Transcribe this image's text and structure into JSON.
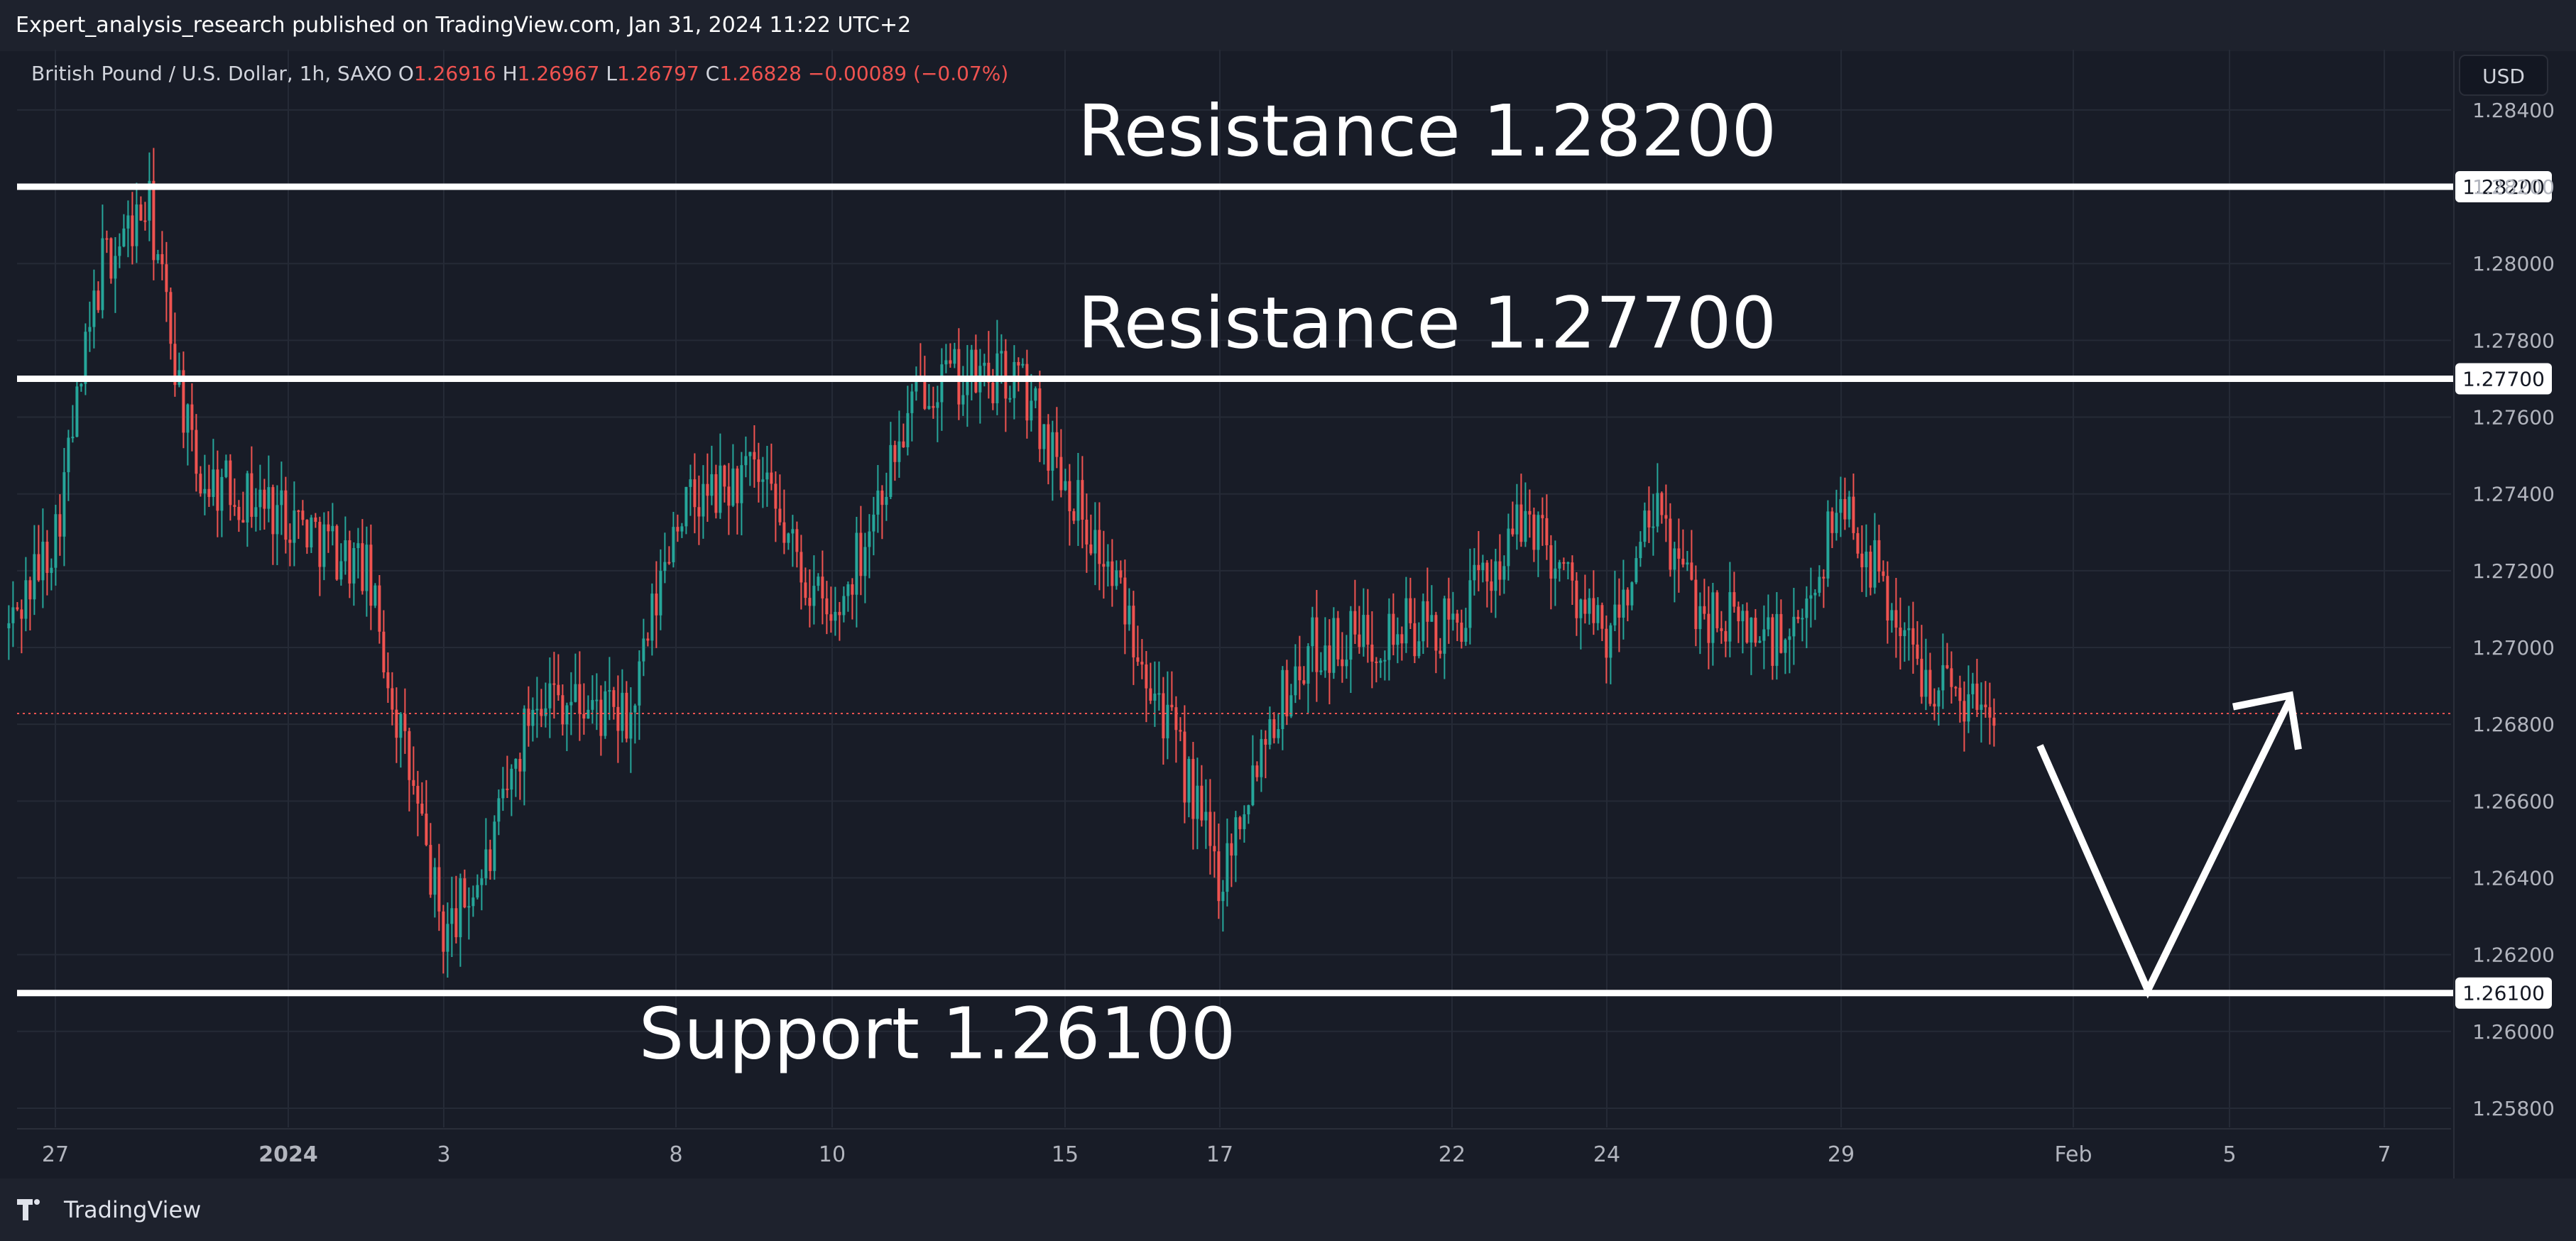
{
  "header": {
    "published_line": "Expert_analysis_research published on TradingView.com, Jan 31, 2024 11:22 UTC+2"
  },
  "legend": {
    "symbol": "British Pound / U.S. Dollar, 1h, SAXO",
    "o_label": "O",
    "o_value": "1.26916",
    "h_label": "H",
    "h_value": "1.26967",
    "l_label": "L",
    "l_value": "1.26797",
    "c_label": "C",
    "c_value": "1.26828",
    "change": "−0.00089 (−0.07%)"
  },
  "currency_button": "USD",
  "footer": {
    "brand": "TradingView"
  },
  "colors": {
    "background": "#181c27",
    "up": "#26a69a",
    "down": "#ef5350",
    "level_line": "#ffffff",
    "current_price_line": "#ef5350"
  },
  "chart_data": {
    "type": "candlestick",
    "timeframe": "1h",
    "ylim": [
      1.2575,
      1.2852
    ],
    "y_ticks": [
      "1.28400",
      "1.28200",
      "1.28000",
      "1.27800",
      "1.27600",
      "1.27400",
      "1.27200",
      "1.27000",
      "1.26800",
      "1.26600",
      "1.26400",
      "1.26200",
      "1.26000",
      "1.25800"
    ],
    "x_tick_labels": [
      "27",
      "2024",
      "3",
      "8",
      "10",
      "15",
      "17",
      "22",
      "24",
      "29",
      "Feb",
      "5",
      "7"
    ],
    "levels": [
      {
        "label": "Resistance 1.28200",
        "value": 1.282,
        "tag": "1.28200"
      },
      {
        "label": "Resistance 1.27700",
        "value": 1.277,
        "tag": "1.27700"
      },
      {
        "label": "Support 1.26100",
        "value": 1.261,
        "tag": "1.26100"
      }
    ],
    "current_price": 1.26828,
    "projection_path": [
      {
        "date": "Jan 31",
        "price": 1.268
      },
      {
        "date": "Feb 3",
        "price": 1.261
      },
      {
        "date": "Feb 6",
        "price": 1.2679
      }
    ],
    "series_path": [
      {
        "date": "Dec 26",
        "price": 1.2705
      },
      {
        "date": "Dec 27",
        "price": 1.273
      },
      {
        "date": "Dec 28",
        "price": 1.28
      },
      {
        "date": "Dec 29",
        "price": 1.2815
      },
      {
        "date": "Dec 30",
        "price": 1.2745
      },
      {
        "date": "Jan 1",
        "price": 1.2735
      },
      {
        "date": "Jan 2",
        "price": 1.272
      },
      {
        "date": "Jan 3",
        "price": 1.2625
      },
      {
        "date": "Jan 4",
        "price": 1.2645
      },
      {
        "date": "Jan 5",
        "price": 1.269
      },
      {
        "date": "Jan 7",
        "price": 1.268
      },
      {
        "date": "Jan 8",
        "price": 1.2735
      },
      {
        "date": "Jan 9",
        "price": 1.2745
      },
      {
        "date": "Jan 10",
        "price": 1.2705
      },
      {
        "date": "Jan 11",
        "price": 1.274
      },
      {
        "date": "Jan 12",
        "price": 1.277
      },
      {
        "date": "Jan 14",
        "price": 1.277
      },
      {
        "date": "Jan 15",
        "price": 1.2745
      },
      {
        "date": "Jan 16",
        "price": 1.27
      },
      {
        "date": "Jan 17",
        "price": 1.264
      },
      {
        "date": "Jan 18",
        "price": 1.268
      },
      {
        "date": "Jan 19",
        "price": 1.27
      },
      {
        "date": "Jan 21",
        "price": 1.2705
      },
      {
        "date": "Jan 22",
        "price": 1.2705
      },
      {
        "date": "Jan 23",
        "price": 1.2735
      },
      {
        "date": "Jan 24",
        "price": 1.27
      },
      {
        "date": "Jan 25",
        "price": 1.2735
      },
      {
        "date": "Jan 26",
        "price": 1.271
      },
      {
        "date": "Jan 28",
        "price": 1.27
      },
      {
        "date": "Jan 29",
        "price": 1.274
      },
      {
        "date": "Jan 30",
        "price": 1.2695
      },
      {
        "date": "Jan 31",
        "price": 1.2683
      }
    ]
  }
}
